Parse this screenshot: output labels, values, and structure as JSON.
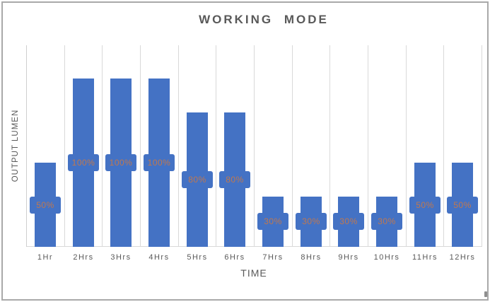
{
  "chart_data": {
    "type": "bar",
    "title": "WORKING MODE",
    "xlabel": "TIME",
    "ylabel": "OUTPUT LUMEN",
    "categories": [
      "1Hr",
      "2Hrs",
      "3Hrs",
      "4Hrs",
      "5Hrs",
      "6Hrs",
      "7Hrs",
      "8Hrs",
      "9Hrs",
      "10Hrs",
      "11Hrs",
      "12Hrs"
    ],
    "values": [
      50,
      100,
      100,
      100,
      80,
      80,
      30,
      30,
      30,
      30,
      50,
      50
    ],
    "data_labels": [
      "50%",
      "100%",
      "100%",
      "100%",
      "80%",
      "80%",
      "30%",
      "30%",
      "30%",
      "30%",
      "50%",
      "50%"
    ],
    "data_label_position": "center",
    "ylim": [
      0,
      120
    ],
    "grid": "vertical-only",
    "legend": "none",
    "colors": {
      "bar": "#4472c4",
      "data_label_text": "#c0784f",
      "data_label_background": "#4472c4",
      "gridline": "#d9d9d9",
      "axis_text": "#595959",
      "title_text": "#595959",
      "frame_border": "#a9a9a9"
    }
  }
}
